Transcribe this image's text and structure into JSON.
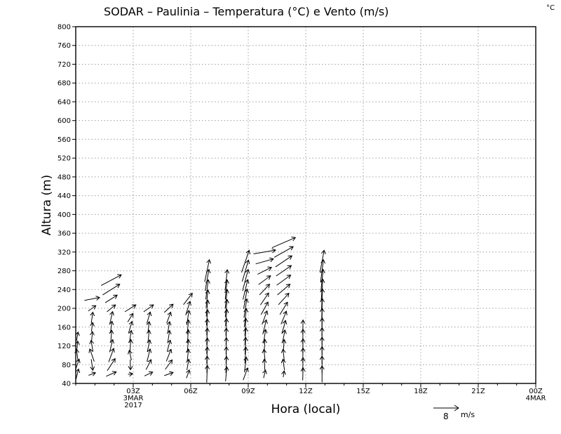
{
  "title": "SODAR  –  Paulinia  –  Temperatura (°C) e Vento (m/s)",
  "corner_unit": "°C",
  "chart_data": {
    "type": "vector",
    "xlabel": "Hora (local)",
    "ylabel": "Altura (m)",
    "xlim_hours": [
      0,
      24
    ],
    "ylim": [
      40,
      800
    ],
    "grid": true,
    "y_ticks": [
      40,
      80,
      120,
      160,
      200,
      240,
      280,
      320,
      360,
      400,
      440,
      480,
      520,
      560,
      600,
      640,
      680,
      720,
      760,
      800
    ],
    "x_ticks": [
      {
        "hour": 3,
        "label": "03Z",
        "date": "3MAR",
        "year": "2017"
      },
      {
        "hour": 6,
        "label": "06Z"
      },
      {
        "hour": 9,
        "label": "09Z"
      },
      {
        "hour": 12,
        "label": "12Z"
      },
      {
        "hour": 15,
        "label": "15Z"
      },
      {
        "hour": 18,
        "label": "18Z"
      },
      {
        "hour": 21,
        "label": "21Z"
      },
      {
        "hour": 24,
        "label": "00Z",
        "date": "4MAR"
      }
    ],
    "reference_vector": {
      "value": "8",
      "unit": "m/s"
    },
    "vectors": [
      {
        "hour": 0.08,
        "levels": [
          [
            60,
            0.8,
            3.2
          ],
          [
            80,
            1.2,
            3.5
          ],
          [
            100,
            -0.5,
            3.8
          ],
          [
            120,
            0.3,
            3.0
          ],
          [
            140,
            0.5,
            2.8
          ]
        ]
      },
      {
        "hour": 0.85,
        "levels": [
          [
            60,
            2.2,
            0.8
          ],
          [
            80,
            0.5,
            -3.5
          ],
          [
            100,
            -1.4,
            4.0
          ],
          [
            120,
            -0.6,
            3.5
          ],
          [
            140,
            0.3,
            3.1
          ],
          [
            160,
            0.4,
            2.9
          ],
          [
            180,
            0.5,
            3.5
          ],
          [
            200,
            2.4,
            1.7
          ],
          [
            220,
            4.8,
            0.9
          ]
        ]
      },
      {
        "hour": 1.85,
        "levels": [
          [
            60,
            3.2,
            1.4
          ],
          [
            80,
            2.5,
            3.8
          ],
          [
            100,
            1.6,
            4.3
          ],
          [
            120,
            1.0,
            4.0
          ],
          [
            140,
            0.3,
            4.0
          ],
          [
            160,
            0.5,
            3.7
          ],
          [
            180,
            0.9,
            3.9
          ],
          [
            200,
            2.7,
            2.2
          ],
          [
            220,
            3.8,
            2.4
          ],
          [
            240,
            5.4,
            3.4
          ],
          [
            260,
            6.4,
            3.4
          ]
        ]
      },
      {
        "hour": 2.85,
        "levels": [
          [
            60,
            1.5,
            0.2
          ],
          [
            80,
            0.1,
            -3.2
          ],
          [
            100,
            -0.7,
            3.1
          ],
          [
            120,
            0.3,
            4.1
          ],
          [
            140,
            0.6,
            3.8
          ],
          [
            160,
            1.1,
            3.6
          ],
          [
            180,
            1.7,
            2.7
          ],
          [
            200,
            3.5,
            2.2
          ]
        ]
      },
      {
        "hour": 3.8,
        "levels": [
          [
            60,
            2.6,
            1.2
          ],
          [
            80,
            1.6,
            3.2
          ],
          [
            100,
            1.0,
            4.0
          ],
          [
            120,
            0.8,
            3.8
          ],
          [
            140,
            0.4,
            4.0
          ],
          [
            160,
            0.4,
            3.5
          ],
          [
            180,
            1.1,
            3.6
          ],
          [
            200,
            3.1,
            2.2
          ]
        ]
      },
      {
        "hour": 4.85,
        "levels": [
          [
            60,
            2.8,
            1.0
          ],
          [
            80,
            2.2,
            3.0
          ],
          [
            100,
            1.5,
            3.8
          ],
          [
            120,
            1.0,
            3.6
          ],
          [
            140,
            0.6,
            3.8
          ],
          [
            160,
            0.6,
            3.5
          ],
          [
            180,
            1.3,
            3.5
          ],
          [
            200,
            2.8,
            2.6
          ]
        ]
      },
      {
        "hour": 5.85,
        "levels": [
          [
            60,
            0.9,
            2.6
          ],
          [
            80,
            0.6,
            3.4
          ],
          [
            100,
            0.4,
            3.9
          ],
          [
            120,
            0.4,
            4.1
          ],
          [
            140,
            0.3,
            4.3
          ],
          [
            160,
            0.4,
            4.6
          ],
          [
            180,
            0.7,
            4.6
          ],
          [
            200,
            1.4,
            4.4
          ],
          [
            220,
            2.8,
            3.6
          ]
        ]
      },
      {
        "hour": 6.85,
        "levels": [
          [
            60,
            0.2,
            5.4
          ],
          [
            80,
            0.1,
            5.4
          ],
          [
            100,
            0.2,
            5.2
          ],
          [
            120,
            0.2,
            5.0
          ],
          [
            140,
            0.2,
            5.3
          ],
          [
            160,
            0.2,
            5.2
          ],
          [
            180,
            0.4,
            5.0
          ],
          [
            200,
            0.5,
            5.2
          ],
          [
            220,
            0.6,
            5.6
          ],
          [
            240,
            0.8,
            6.2
          ],
          [
            260,
            1.2,
            6.8
          ],
          [
            280,
            1.5,
            7.0
          ]
        ]
      },
      {
        "hour": 7.85,
        "levels": [
          [
            60,
            0.4,
            4.6
          ],
          [
            80,
            0.2,
            5.2
          ],
          [
            100,
            0.1,
            5.3
          ],
          [
            120,
            0.1,
            5.2
          ],
          [
            140,
            0.1,
            5.3
          ],
          [
            160,
            0.2,
            5.4
          ],
          [
            180,
            0.4,
            5.3
          ],
          [
            200,
            0.6,
            5.6
          ],
          [
            220,
            0.6,
            6.0
          ],
          [
            240,
            0.6,
            6.2
          ],
          [
            260,
            0.7,
            6.6
          ]
        ]
      },
      {
        "hour": 8.85,
        "levels": [
          [
            60,
            1.4,
            3.8
          ],
          [
            80,
            0.6,
            4.8
          ],
          [
            100,
            0.3,
            5.2
          ],
          [
            120,
            0.2,
            5.4
          ],
          [
            140,
            0.3,
            5.5
          ],
          [
            160,
            0.3,
            5.6
          ],
          [
            180,
            0.6,
            5.8
          ],
          [
            200,
            0.9,
            6.0
          ],
          [
            220,
            1.1,
            6.2
          ],
          [
            240,
            1.5,
            6.3
          ],
          [
            260,
            1.8,
            6.8
          ],
          [
            280,
            2.0,
            6.8
          ],
          [
            300,
            2.4,
            7.0
          ]
        ]
      },
      {
        "hour": 9.85,
        "levels": [
          [
            60,
            0.6,
            2.5
          ],
          [
            80,
            -0.2,
            3.4
          ],
          [
            100,
            -0.4,
            3.7
          ],
          [
            120,
            0.2,
            4.2
          ],
          [
            140,
            0.7,
            4.4
          ],
          [
            160,
            1.1,
            4.6
          ],
          [
            180,
            1.6,
            4.3
          ],
          [
            200,
            2.2,
            4.0
          ],
          [
            220,
            2.6,
            3.8
          ],
          [
            240,
            3.2,
            3.4
          ],
          [
            260,
            3.8,
            2.8
          ],
          [
            280,
            4.4,
            2.2
          ],
          [
            300,
            5.6,
            1.6
          ],
          [
            320,
            7.0,
            1.2
          ]
        ]
      },
      {
        "hour": 10.85,
        "levels": [
          [
            60,
            0.3,
            2.0
          ],
          [
            80,
            -0.5,
            3.4
          ],
          [
            100,
            -0.4,
            3.8
          ],
          [
            120,
            0.3,
            4.0
          ],
          [
            140,
            0.8,
            4.1
          ],
          [
            160,
            1.2,
            4.2
          ],
          [
            180,
            1.7,
            4.1
          ],
          [
            200,
            2.4,
            3.9
          ],
          [
            220,
            3.3,
            3.6
          ],
          [
            240,
            4.0,
            3.4
          ],
          [
            260,
            4.4,
            3.2
          ],
          [
            280,
            4.8,
            3.3
          ],
          [
            300,
            5.2,
            3.5
          ],
          [
            320,
            6.0,
            3.4
          ],
          [
            340,
            7.4,
            3.2
          ]
        ]
      },
      {
        "hour": 11.85,
        "levels": [
          [
            60,
            0.1,
            4.0
          ],
          [
            80,
            0.1,
            4.4
          ],
          [
            100,
            0.1,
            4.6
          ],
          [
            120,
            0.1,
            4.5
          ],
          [
            140,
            0.1,
            4.6
          ],
          [
            160,
            0.1,
            4.5
          ]
        ]
      },
      {
        "hour": 12.85,
        "levels": [
          [
            60,
            0.0,
            5.2
          ],
          [
            80,
            0.0,
            5.4
          ],
          [
            100,
            0.0,
            5.5
          ],
          [
            120,
            0.0,
            5.5
          ],
          [
            140,
            0.0,
            5.6
          ],
          [
            160,
            0.1,
            5.8
          ],
          [
            180,
            0.1,
            6.0
          ],
          [
            200,
            0.2,
            6.2
          ],
          [
            220,
            0.3,
            6.4
          ],
          [
            240,
            0.5,
            6.6
          ],
          [
            260,
            0.7,
            6.8
          ],
          [
            280,
            0.9,
            7.0
          ],
          [
            300,
            1.3,
            7.0
          ]
        ]
      }
    ]
  }
}
